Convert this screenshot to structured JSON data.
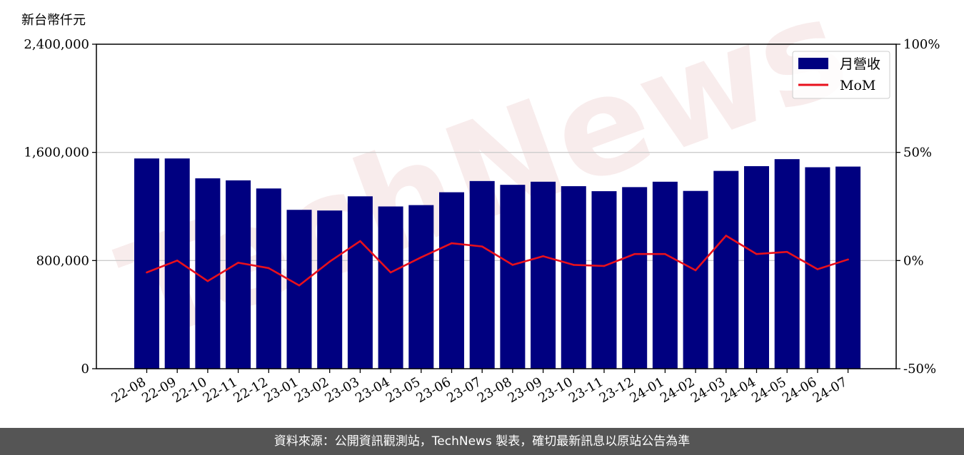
{
  "chart_data": {
    "type": "bar+line",
    "unit_label": "新台幣仟元",
    "categories": [
      "22-08",
      "22-09",
      "22-10",
      "22-11",
      "22-12",
      "23-01",
      "23-02",
      "23-03",
      "23-04",
      "23-05",
      "23-06",
      "23-07",
      "23-08",
      "23-09",
      "23-10",
      "23-11",
      "23-12",
      "24-01",
      "24-02",
      "24-03",
      "24-04",
      "24-05",
      "24-06",
      "24-07"
    ],
    "series": [
      {
        "name": "月營收",
        "type": "bar",
        "axis": "left",
        "color": "#000080",
        "values": [
          1555000,
          1555000,
          1408000,
          1393000,
          1333000,
          1175000,
          1170000,
          1275000,
          1200000,
          1210000,
          1305000,
          1388000,
          1360000,
          1383000,
          1350000,
          1313000,
          1343000,
          1383000,
          1315000,
          1463000,
          1498000,
          1550000,
          1490000,
          1495000
        ]
      },
      {
        "name": "MoM",
        "type": "line",
        "axis": "right",
        "color": "#e8101c",
        "values": [
          -5.5,
          0,
          -9.5,
          -1,
          -3.5,
          -11.5,
          -0.5,
          9,
          -5.5,
          1.5,
          8,
          6.5,
          -2,
          2,
          -2,
          -2.5,
          3,
          3,
          -4.5,
          11.5,
          3,
          4,
          -4,
          0.5
        ]
      }
    ],
    "left_axis": {
      "min": 0,
      "max": 2400000,
      "ticks": [
        0,
        800000,
        1600000,
        2400000
      ],
      "tick_labels": [
        "0",
        "800,000",
        "1,600,000",
        "2,400,000"
      ]
    },
    "right_axis": {
      "min": -50,
      "max": 100,
      "ticks": [
        -50,
        0,
        50,
        100
      ],
      "tick_labels": [
        "-50%",
        "0%",
        "50%",
        "100%"
      ]
    },
    "grid": "horizontal",
    "legend_position": "top-right"
  },
  "footer": {
    "text": "資料來源：公開資訊觀測站，TechNews 製表，確切最新訊息以原站公告為準"
  }
}
